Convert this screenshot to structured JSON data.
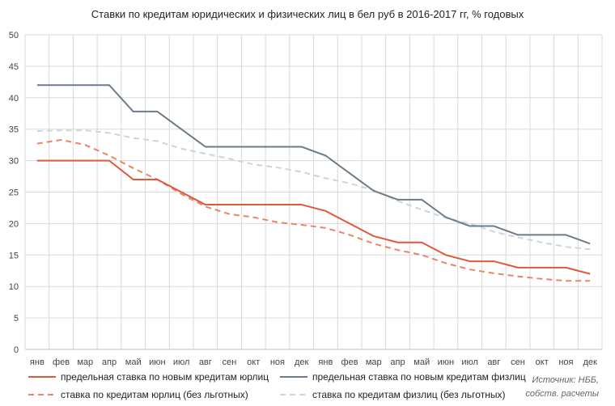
{
  "chart_data": {
    "type": "line",
    "title": "Ставки по кредитам юридических и физических лиц в бел руб в 2016-2017 гг, % годовых",
    "xlabel": "",
    "ylabel": "",
    "ylim": [
      0,
      50
    ],
    "yticks": [
      0,
      5,
      10,
      15,
      20,
      25,
      30,
      35,
      40,
      45,
      50
    ],
    "grid": true,
    "legend_position": "bottom",
    "categories": [
      "янв",
      "фев",
      "мар",
      "апр",
      "май",
      "июн",
      "июл",
      "авг",
      "сен",
      "окт",
      "ноя",
      "дек",
      "янв",
      "фев",
      "мар",
      "апр",
      "май",
      "июн",
      "июл",
      "авг",
      "сен",
      "окт",
      "ноя",
      "дек"
    ],
    "series": [
      {
        "name": "предельная ставка по новым кредитам юрлиц",
        "color": "#e0583a",
        "style": "solid",
        "values": [
          30,
          30,
          30,
          30,
          27,
          27,
          25,
          23,
          23,
          23,
          23,
          23,
          22,
          20,
          18,
          17,
          17,
          15,
          14,
          14,
          13,
          13,
          13,
          12
        ]
      },
      {
        "name": "предельная ставка по новым кредитам физлиц",
        "color": "#6d7b8a",
        "style": "solid",
        "values": [
          42,
          42,
          42,
          42,
          37.8,
          37.8,
          35,
          32.2,
          32.2,
          32.2,
          32.2,
          32.2,
          30.8,
          28,
          25.2,
          23.8,
          23.8,
          21,
          19.6,
          19.6,
          18.2,
          18.2,
          18.2,
          16.8
        ]
      },
      {
        "name": "ставка по кредитам юрлиц (без льготных)",
        "color": "#e98566",
        "style": "dashed",
        "values": [
          32.7,
          33.3,
          32.5,
          30.8,
          28.8,
          27,
          24.7,
          22.7,
          21.5,
          21,
          20.2,
          19.8,
          19.3,
          18.2,
          16.8,
          15.8,
          15,
          13.7,
          12.7,
          12.1,
          11.6,
          11.2,
          10.9,
          10.9
        ]
      },
      {
        "name": "ставка по кредитам физлиц (без льготных)",
        "color": "#c9d5df",
        "style": "dashed",
        "values": [
          34.7,
          34.8,
          34.8,
          34.4,
          33.6,
          33.1,
          31.9,
          31.1,
          30.3,
          29.4,
          28.9,
          28.2,
          27.2,
          26.4,
          25.3,
          23.6,
          22.2,
          20.9,
          20,
          18.7,
          17.8,
          17,
          16.3,
          15.9
        ]
      }
    ]
  },
  "source_note": {
    "line1": "Источник: НББ,",
    "line2": "собств. расчеты"
  }
}
